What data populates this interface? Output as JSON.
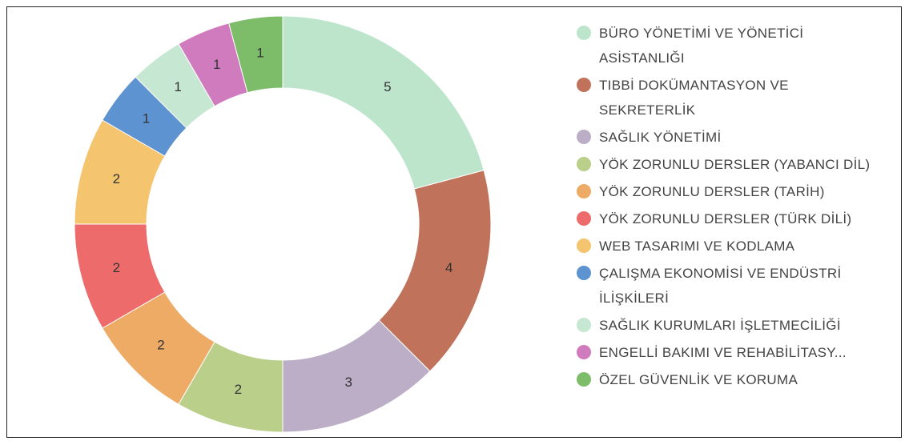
{
  "chart_data": {
    "type": "donut",
    "categories": [
      "BÜRO YÖNETİMİ VE YÖNETİCİ ASİSTANLIĞI",
      "TIBBİ DOKÜMANTASYON VE SEKRETERLİK",
      "SAĞLIK YÖNETİMİ",
      "YÖK ZORUNLU DERSLER (YABANCI DİL)",
      "YÖK ZORUNLU DERSLER (TARİH)",
      "YÖK ZORUNLU DERSLER (TÜRK DİLİ)",
      "WEB TASARIMI VE KODLAMA",
      "ÇALIŞMA EKONOMİSİ VE ENDÜSTRİ İLİŞKİLERİ",
      "SAĞLIK KURUMLARI İŞLETMECİLİĞİ",
      "ENGELLİ BAKIMI VE REHABİLİTASY...",
      "ÖZEL GÜVENLİK VE KORUMA"
    ],
    "values": [
      5,
      4,
      3,
      2,
      2,
      2,
      2,
      1,
      1,
      1,
      1
    ],
    "colors": [
      "#bde5cc",
      "#c0735a",
      "#bcaec6",
      "#b9cf8a",
      "#eeab66",
      "#ee6b6b",
      "#f4c46e",
      "#5e93d1",
      "#c6e8d2",
      "#d07bbd",
      "#7dbd6a"
    ],
    "legend": "right"
  }
}
